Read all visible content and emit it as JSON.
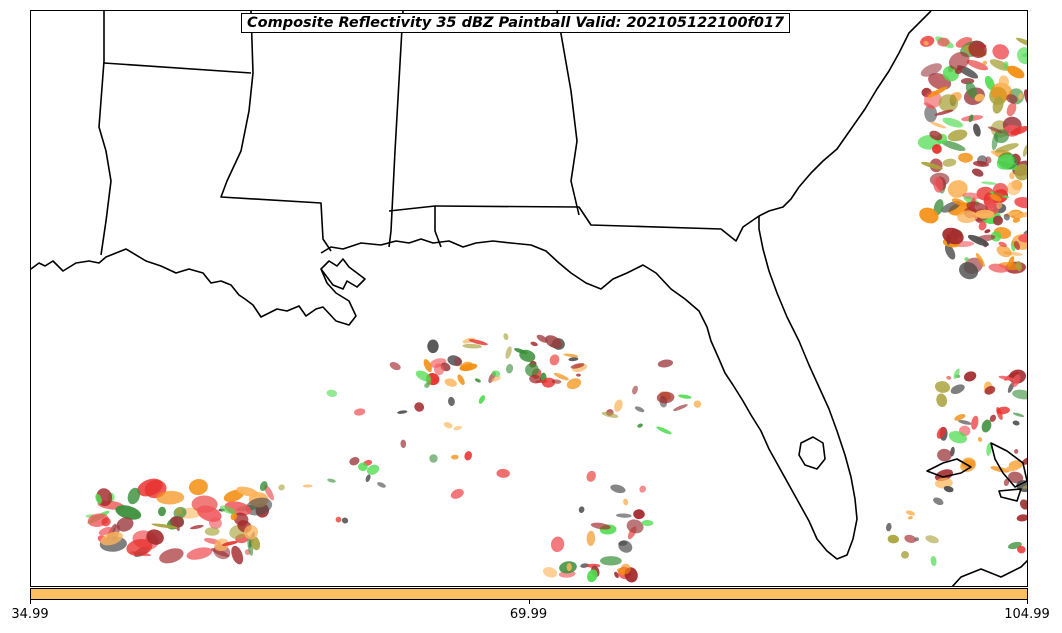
{
  "title": "Composite Reflectivity 35 dBZ Paintball Valid: 202105122100f017",
  "colorbar": {
    "color": "#fdbf5f",
    "ticks": [
      "34.99",
      "69.99",
      "104.99"
    ],
    "range": [
      34.99,
      104.99
    ]
  },
  "palette": {
    "red": "#e8312e",
    "light_red": "#f0555a",
    "dark_red": "#a3282b",
    "maroon": "#9c3b3f",
    "orange": "#f48f12",
    "light_orange": "#fdb55c",
    "olive": "#a9a23c",
    "green": "#3a8f3a",
    "bright_green": "#4fdc4f",
    "dark_gray": "#4d4d4d"
  }
}
